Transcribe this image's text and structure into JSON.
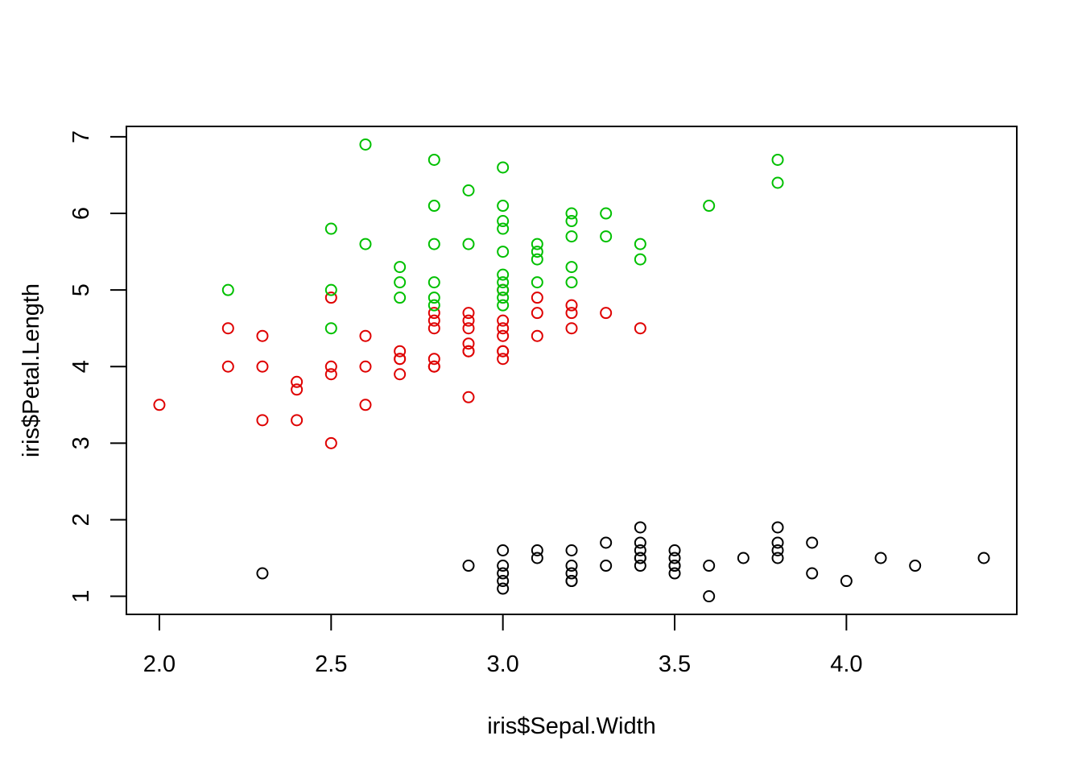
{
  "chart_data": {
    "type": "scatter",
    "title": "",
    "xlabel": "iris$Sepal.Width",
    "ylabel": "iris$Petal.Length",
    "xlim": [
      1.904,
      4.496
    ],
    "ylim": [
      0.764,
      7.136
    ],
    "xticks": [
      "2.0",
      "2.5",
      "3.0",
      "3.5",
      "4.0"
    ],
    "yticks": [
      "1",
      "2",
      "3",
      "4",
      "5",
      "6",
      "7"
    ],
    "grid": false,
    "legend": "none",
    "series": [
      {
        "color": "#000000",
        "x": [
          2.3,
          2.9,
          3.0,
          3.0,
          3.0,
          3.0,
          3.0,
          3.1,
          3.1,
          3.2,
          3.2,
          3.2,
          3.2,
          3.2,
          3.3,
          3.3,
          3.4,
          3.4,
          3.4,
          3.4,
          3.4,
          3.4,
          3.5,
          3.5,
          3.5,
          3.5,
          3.5,
          3.6,
          3.6,
          3.7,
          3.8,
          3.8,
          3.8,
          3.8,
          3.9,
          3.9,
          4.0,
          4.1,
          4.2,
          4.4
        ],
        "y": [
          1.3,
          1.4,
          1.6,
          1.4,
          1.3,
          1.2,
          1.1,
          1.6,
          1.5,
          1.6,
          1.4,
          1.3,
          1.2,
          1.2,
          1.7,
          1.4,
          1.9,
          1.7,
          1.6,
          1.5,
          1.5,
          1.4,
          1.6,
          1.5,
          1.4,
          1.4,
          1.3,
          1.4,
          1.0,
          1.5,
          1.9,
          1.7,
          1.6,
          1.5,
          1.7,
          1.3,
          1.2,
          1.5,
          1.4,
          1.5
        ]
      },
      {
        "color": "#DF0000",
        "x": [
          2.0,
          2.2,
          2.2,
          2.3,
          2.3,
          2.3,
          2.4,
          2.4,
          2.4,
          2.5,
          2.5,
          2.5,
          2.5,
          2.6,
          2.6,
          2.6,
          2.7,
          2.7,
          2.7,
          2.7,
          2.8,
          2.8,
          2.8,
          2.8,
          2.8,
          2.8,
          2.9,
          2.9,
          2.9,
          2.9,
          2.9,
          2.9,
          2.9,
          3.0,
          3.0,
          3.0,
          3.0,
          3.0,
          3.0,
          3.0,
          3.1,
          3.1,
          3.1,
          3.2,
          3.2,
          3.2,
          3.3,
          3.4
        ],
        "y": [
          3.5,
          4.5,
          4.0,
          4.4,
          4.0,
          3.3,
          3.8,
          3.7,
          3.3,
          4.9,
          4.0,
          3.9,
          3.0,
          4.4,
          4.0,
          3.5,
          4.2,
          4.1,
          4.1,
          3.9,
          4.7,
          4.6,
          4.5,
          4.1,
          4.0,
          4.0,
          4.7,
          4.6,
          4.5,
          4.3,
          4.2,
          4.2,
          3.6,
          5.0,
          4.6,
          4.5,
          4.4,
          4.2,
          4.2,
          4.1,
          4.9,
          4.7,
          4.4,
          4.8,
          4.7,
          4.5,
          4.7,
          4.5
        ]
      },
      {
        "color": "#00C000",
        "x": [
          2.2,
          2.5,
          2.5,
          2.5,
          2.6,
          2.6,
          2.7,
          2.7,
          2.7,
          2.8,
          2.8,
          2.8,
          2.8,
          2.8,
          2.8,
          2.9,
          2.9,
          3.0,
          3.0,
          3.0,
          3.0,
          3.0,
          3.0,
          3.0,
          3.0,
          3.0,
          3.0,
          3.1,
          3.1,
          3.1,
          3.1,
          3.2,
          3.2,
          3.2,
          3.2,
          3.2,
          3.3,
          3.3,
          3.4,
          3.4,
          3.6,
          3.8,
          3.8
        ],
        "y": [
          5.0,
          5.8,
          5.0,
          4.5,
          6.9,
          5.6,
          5.3,
          5.1,
          4.9,
          6.7,
          6.1,
          5.6,
          5.1,
          4.9,
          4.8,
          6.3,
          5.6,
          6.6,
          6.1,
          5.9,
          5.8,
          5.5,
          5.2,
          5.1,
          5.0,
          4.9,
          4.8,
          5.6,
          5.5,
          5.4,
          5.1,
          6.0,
          5.9,
          5.7,
          5.3,
          5.1,
          6.0,
          5.7,
          5.6,
          5.4,
          6.1,
          6.7,
          6.4
        ]
      }
    ]
  }
}
